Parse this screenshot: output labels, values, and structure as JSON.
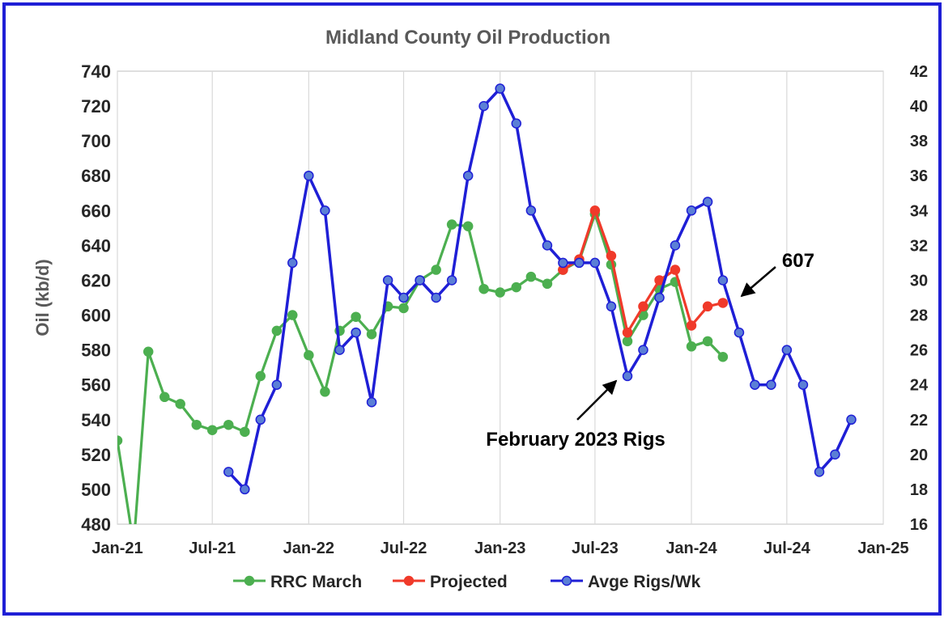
{
  "chart_data": {
    "type": "line",
    "title": "Midland County Oil Production",
    "ylabel": "Oil (kb/d)",
    "ylabel_right": "",
    "xlim": [
      "2021-01-01",
      "2025-01-01"
    ],
    "x_ticks": [
      {
        "date": "2021-01-01",
        "label": "Jan-21"
      },
      {
        "date": "2021-07-01",
        "label": "Jul-21"
      },
      {
        "date": "2022-01-01",
        "label": "Jan-22"
      },
      {
        "date": "2022-07-01",
        "label": "Jul-22"
      },
      {
        "date": "2023-01-01",
        "label": "Jan-23"
      },
      {
        "date": "2023-07-01",
        "label": "Jul-23"
      },
      {
        "date": "2024-01-01",
        "label": "Jan-24"
      },
      {
        "date": "2024-07-01",
        "label": "Jul-24"
      },
      {
        "date": "2025-01-01",
        "label": "Jan-25"
      }
    ],
    "ylim": [
      480,
      740
    ],
    "y_ticks": [
      480,
      500,
      520,
      540,
      560,
      580,
      600,
      620,
      640,
      660,
      680,
      700,
      720,
      740
    ],
    "y2lim": [
      16,
      42
    ],
    "y2_ticks": [
      16,
      18,
      20,
      22,
      24,
      26,
      28,
      30,
      32,
      34,
      36,
      38,
      40,
      42
    ],
    "grid": "vertical",
    "legend_position": "bottom",
    "series": [
      {
        "name": "RRC March",
        "color": "#4caf50",
        "axis": "left",
        "points": [
          [
            "2021-01-01",
            528
          ],
          [
            "2021-02-01",
            468
          ],
          [
            "2021-03-01",
            579
          ],
          [
            "2021-04-01",
            553
          ],
          [
            "2021-05-01",
            549
          ],
          [
            "2021-06-01",
            537
          ],
          [
            "2021-07-01",
            534
          ],
          [
            "2021-08-01",
            537
          ],
          [
            "2021-09-01",
            533
          ],
          [
            "2021-10-01",
            565
          ],
          [
            "2021-11-01",
            591
          ],
          [
            "2021-12-01",
            600
          ],
          [
            "2022-01-01",
            577
          ],
          [
            "2022-02-01",
            556
          ],
          [
            "2022-03-01",
            591
          ],
          [
            "2022-04-01",
            599
          ],
          [
            "2022-05-01",
            589
          ],
          [
            "2022-06-01",
            605
          ],
          [
            "2022-07-01",
            604
          ],
          [
            "2022-08-01",
            620
          ],
          [
            "2022-09-01",
            626
          ],
          [
            "2022-10-01",
            652
          ],
          [
            "2022-11-01",
            651
          ],
          [
            "2022-12-01",
            615
          ],
          [
            "2023-01-01",
            613
          ],
          [
            "2023-02-01",
            616
          ],
          [
            "2023-03-01",
            622
          ],
          [
            "2023-04-01",
            618
          ],
          [
            "2023-05-01",
            626
          ],
          [
            "2023-06-01",
            631
          ],
          [
            "2023-07-01",
            658
          ],
          [
            "2023-08-01",
            629
          ],
          [
            "2023-09-01",
            585
          ],
          [
            "2023-10-01",
            600
          ],
          [
            "2023-11-01",
            615
          ],
          [
            "2023-12-01",
            619
          ],
          [
            "2024-01-01",
            582
          ],
          [
            "2024-02-01",
            585
          ],
          [
            "2024-03-01",
            576
          ]
        ]
      },
      {
        "name": "Projected",
        "color": "#f03a2a",
        "axis": "left",
        "points": [
          [
            "2023-05-01",
            626
          ],
          [
            "2023-06-01",
            632
          ],
          [
            "2023-07-01",
            660
          ],
          [
            "2023-08-01",
            634
          ],
          [
            "2023-09-01",
            590
          ],
          [
            "2023-10-01",
            605
          ],
          [
            "2023-11-01",
            620
          ],
          [
            "2023-12-01",
            626
          ],
          [
            "2024-01-01",
            594
          ],
          [
            "2024-02-01",
            605
          ],
          [
            "2024-03-01",
            607
          ]
        ]
      },
      {
        "name": "Avge Rigs/Wk",
        "color": "#1f1fd6",
        "axis": "right",
        "points": [
          [
            "2021-08-01",
            19
          ],
          [
            "2021-09-01",
            18
          ],
          [
            "2021-10-01",
            22
          ],
          [
            "2021-11-01",
            24
          ],
          [
            "2021-12-01",
            31
          ],
          [
            "2022-01-01",
            36
          ],
          [
            "2022-02-01",
            34
          ],
          [
            "2022-03-01",
            26
          ],
          [
            "2022-04-01",
            27
          ],
          [
            "2022-05-01",
            23
          ],
          [
            "2022-06-01",
            30
          ],
          [
            "2022-07-01",
            29
          ],
          [
            "2022-08-01",
            30
          ],
          [
            "2022-09-01",
            29
          ],
          [
            "2022-10-01",
            30
          ],
          [
            "2022-11-01",
            36
          ],
          [
            "2022-12-01",
            40
          ],
          [
            "2023-01-01",
            41
          ],
          [
            "2023-02-01",
            39
          ],
          [
            "2023-03-01",
            34
          ],
          [
            "2023-04-01",
            32
          ],
          [
            "2023-05-01",
            31
          ],
          [
            "2023-06-01",
            31
          ],
          [
            "2023-07-01",
            31
          ],
          [
            "2023-08-01",
            28.5
          ],
          [
            "2023-09-01",
            24.5
          ],
          [
            "2023-10-01",
            26
          ],
          [
            "2023-11-01",
            29
          ],
          [
            "2023-12-01",
            32
          ],
          [
            "2024-01-01",
            34
          ],
          [
            "2024-02-01",
            34.5
          ],
          [
            "2024-03-01",
            30
          ],
          [
            "2024-04-01",
            27
          ],
          [
            "2024-05-01",
            24
          ],
          [
            "2024-06-01",
            24
          ],
          [
            "2024-07-01",
            26
          ],
          [
            "2024-08-01",
            24
          ],
          [
            "2024-09-01",
            19
          ],
          [
            "2024-10-01",
            20
          ],
          [
            "2024-11-01",
            22
          ]
        ]
      }
    ],
    "annotations": [
      {
        "text": "February 2023 Rigs",
        "target": [
          "2023-09-01",
          24.5
        ],
        "axis": "right"
      },
      {
        "text": "607",
        "target": [
          "2024-03-15",
          29
        ],
        "axis": "right"
      }
    ]
  }
}
